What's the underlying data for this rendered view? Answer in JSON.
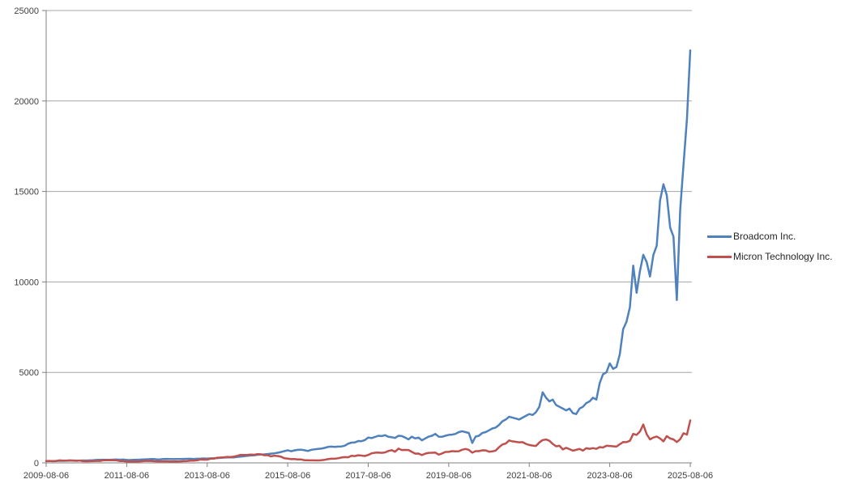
{
  "chart_data": {
    "type": "line",
    "title": "",
    "xlabel": "",
    "ylabel": "",
    "x_start": "2009-08-06",
    "x_end": "2025-08-06",
    "interval_months": 1,
    "ylim": [
      0,
      25000
    ],
    "y_ticks": [
      0,
      5000,
      10000,
      15000,
      20000,
      25000
    ],
    "x_tick_labels": [
      "2009-08-06",
      "2011-08-06",
      "2013-08-06",
      "2015-08-06",
      "2017-08-06",
      "2019-08-06",
      "2021-08-06",
      "2023-08-06",
      "2025-08-06"
    ],
    "x_tick_every_n_points": 24,
    "grid": "horizontal",
    "legend_position": "right",
    "colors": {
      "gridline": "#A6A6A6",
      "axis": "#808080",
      "tick_text": "#404040",
      "background": "#FFFFFF"
    },
    "series": [
      {
        "name": "Broadcom Inc.",
        "color": "#4F81BD",
        "values": [
          100,
          104,
          98,
          107,
          116,
          112,
          117,
          126,
          134,
          121,
          124,
          134,
          129,
          139,
          149,
          159,
          168,
          174,
          169,
          164,
          179,
          184,
          174,
          184,
          163,
          158,
          168,
          174,
          179,
          189,
          199,
          204,
          209,
          194,
          199,
          209,
          219,
          214,
          204,
          209,
          214,
          219,
          224,
          229,
          214,
          229,
          231,
          244,
          234,
          249,
          254,
          264,
          279,
          289,
          299,
          309,
          304,
          329,
          349,
          369,
          394,
          409,
          419,
          449,
          459,
          469,
          489,
          509,
          529,
          559,
          599,
          649,
          697,
          645,
          689,
          719,
          729,
          699,
          659,
          719,
          749,
          769,
          789,
          829,
          879,
          899,
          879,
          899,
          909,
          949,
          1059,
          1119,
          1129,
          1209,
          1199,
          1259,
          1399,
          1369,
          1429,
          1499,
          1479,
          1529,
          1439,
          1419,
          1379,
          1499,
          1479,
          1399,
          1299,
          1449,
          1349,
          1399,
          1249,
          1349,
          1449,
          1499,
          1599,
          1449,
          1439,
          1499,
          1549,
          1559,
          1599,
          1699,
          1749,
          1699,
          1649,
          1099,
          1449,
          1499,
          1649,
          1699,
          1799,
          1899,
          1949,
          2099,
          2299,
          2399,
          2549,
          2499,
          2449,
          2399,
          2499,
          2599,
          2699,
          2649,
          2799,
          3099,
          3899,
          3599,
          3399,
          3499,
          3199,
          3099,
          2999,
          2899,
          2999,
          2749,
          2699,
          2999,
          3099,
          3299,
          3399,
          3599,
          3499,
          4399,
          4899,
          4999,
          5499,
          5199,
          5299,
          5999,
          7399,
          7799,
          8599,
          10899,
          9399,
          10599,
          11499,
          11099,
          10299,
          11499,
          11999,
          14499,
          15399,
          14799,
          12999,
          12499,
          8999,
          13999,
          16499,
          18999,
          22799
        ]
      },
      {
        "name": "Micron Technology Inc.",
        "color": "#C0504D",
        "values": [
          100,
          109,
          94,
          104,
          139,
          124,
          119,
          139,
          119,
          114,
          129,
          94,
          89,
          94,
          104,
          109,
          107,
          139,
          149,
          154,
          149,
          139,
          99,
          99,
          74,
          84,
          74,
          79,
          84,
          104,
          114,
          109,
          94,
          84,
          84,
          86,
          84,
          79,
          74,
          79,
          84,
          94,
          104,
          124,
          124,
          144,
          189,
          174,
          179,
          234,
          234,
          284,
          294,
          309,
          329,
          319,
          349,
          389,
          444,
          439,
          444,
          459,
          449,
          484,
          474,
          419,
          429,
          364,
          394,
          379,
          339,
          254,
          234,
          204,
          214,
          194,
          189,
          149,
          144,
          139,
          139,
          134,
          149,
          169,
          204,
          229,
          229,
          254,
          294,
          319,
          309,
          389,
          374,
          419,
          404,
          379,
          439,
          529,
          559,
          574,
          554,
          579,
          659,
          704,
          619,
          789,
          709,
          714,
          709,
          609,
          509,
          514,
          429,
          509,
          554,
          559,
          569,
          454,
          519,
          604,
          609,
          649,
          639,
          644,
          724,
          769,
          719,
          564,
          649,
          649,
          694,
          689,
          619,
          634,
          679,
          869,
          1014,
          1069,
          1239,
          1189,
          1164,
          1134,
          1144,
          1049,
          989,
          959,
          934,
          1124,
          1259,
          1294,
          1219,
          1049,
          919,
          944,
          744,
          834,
          759,
          674,
          719,
          769,
          674,
          809,
          779,
          814,
          774,
          874,
          849,
          944,
          934,
          919,
          899,
          1029,
          1149,
          1144,
          1219,
          1599,
          1549,
          1729,
          2119,
          1589,
          1299,
          1399,
          1459,
          1349,
          1189,
          1479,
          1349,
          1299,
          1149,
          1309,
          1639,
          1559,
          2349
        ]
      }
    ]
  },
  "legend": {
    "items": [
      {
        "label": "Broadcom Inc."
      },
      {
        "label": "Micron Technology Inc."
      }
    ]
  }
}
